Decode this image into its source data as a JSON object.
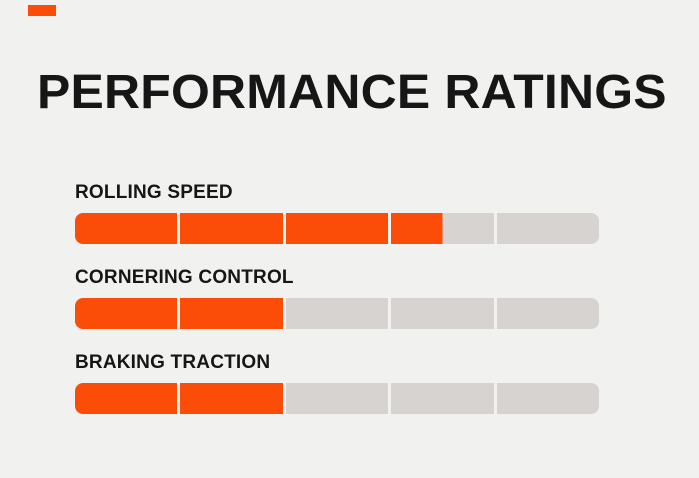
{
  "title": "PERFORMANCE RATINGS",
  "colors": {
    "accent": "#FB4D08",
    "track": "#D6D3D0",
    "background": "#F1F1F0",
    "text": "#161616"
  },
  "ratings": [
    {
      "label": "ROLLING SPEED",
      "value": 3.5,
      "max": 5
    },
    {
      "label": "CORNERING CONTROL",
      "value": 2,
      "max": 5
    },
    {
      "label": "BRAKING TRACTION",
      "value": 2,
      "max": 5
    }
  ],
  "chart_data": {
    "type": "bar",
    "title": "PERFORMANCE RATINGS",
    "categories": [
      "ROLLING SPEED",
      "CORNERING CONTROL",
      "BRAKING TRACTION"
    ],
    "values": [
      3.5,
      2,
      2
    ],
    "value_range": [
      0,
      5
    ],
    "segments_per_bar": 5,
    "orientation": "horizontal",
    "grid": false,
    "legend": "none",
    "fill_color": "#FB4D08",
    "track_color": "#D6D3D0"
  }
}
